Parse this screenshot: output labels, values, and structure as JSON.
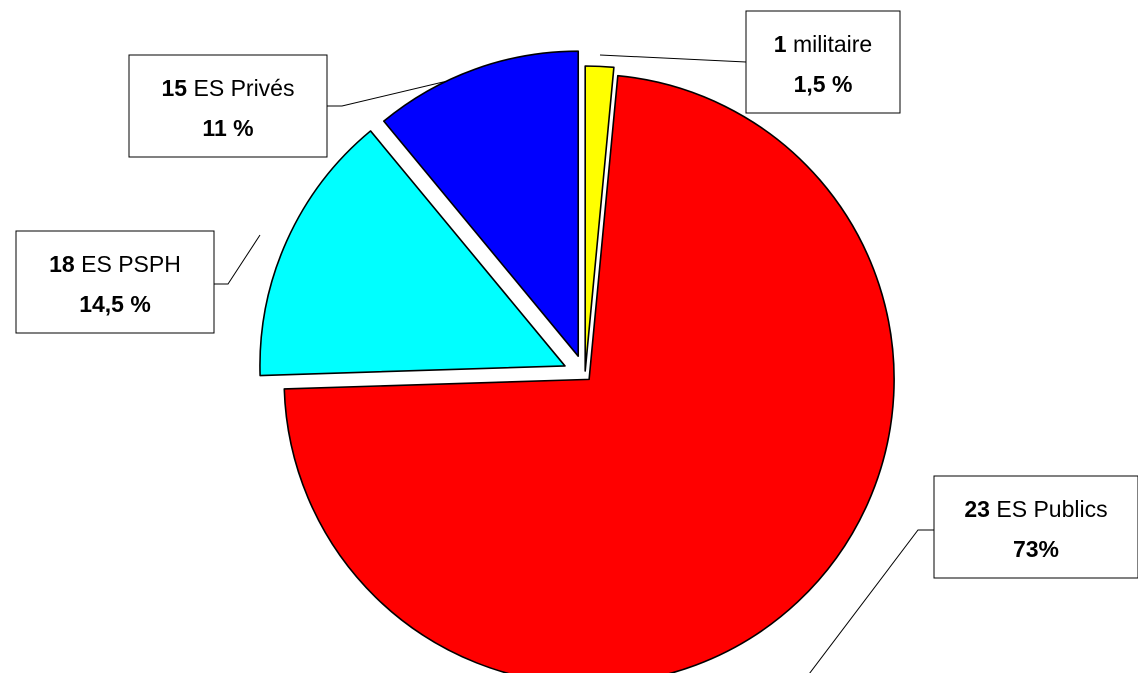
{
  "chart_data": {
    "type": "pie",
    "title": "",
    "slices": [
      {
        "count": "1",
        "category": "militaire",
        "percent_label": "1,5 %",
        "value": 1.5,
        "color": "#ffff00"
      },
      {
        "count": "23",
        "category": "ES Publics",
        "percent_label": "73%",
        "value": 73,
        "color": "#ff0000"
      },
      {
        "count": "18",
        "category": "ES PSPH",
        "percent_label": "14,5 %",
        "value": 14.5,
        "color": "#00ffff"
      },
      {
        "count": "15",
        "category": "ES Privés",
        "percent_label": "11 %",
        "value": 11,
        "color": "#0000ff"
      }
    ],
    "start_angle_deg": 0,
    "direction": "clockwise",
    "exploded": true,
    "legend": "none"
  }
}
